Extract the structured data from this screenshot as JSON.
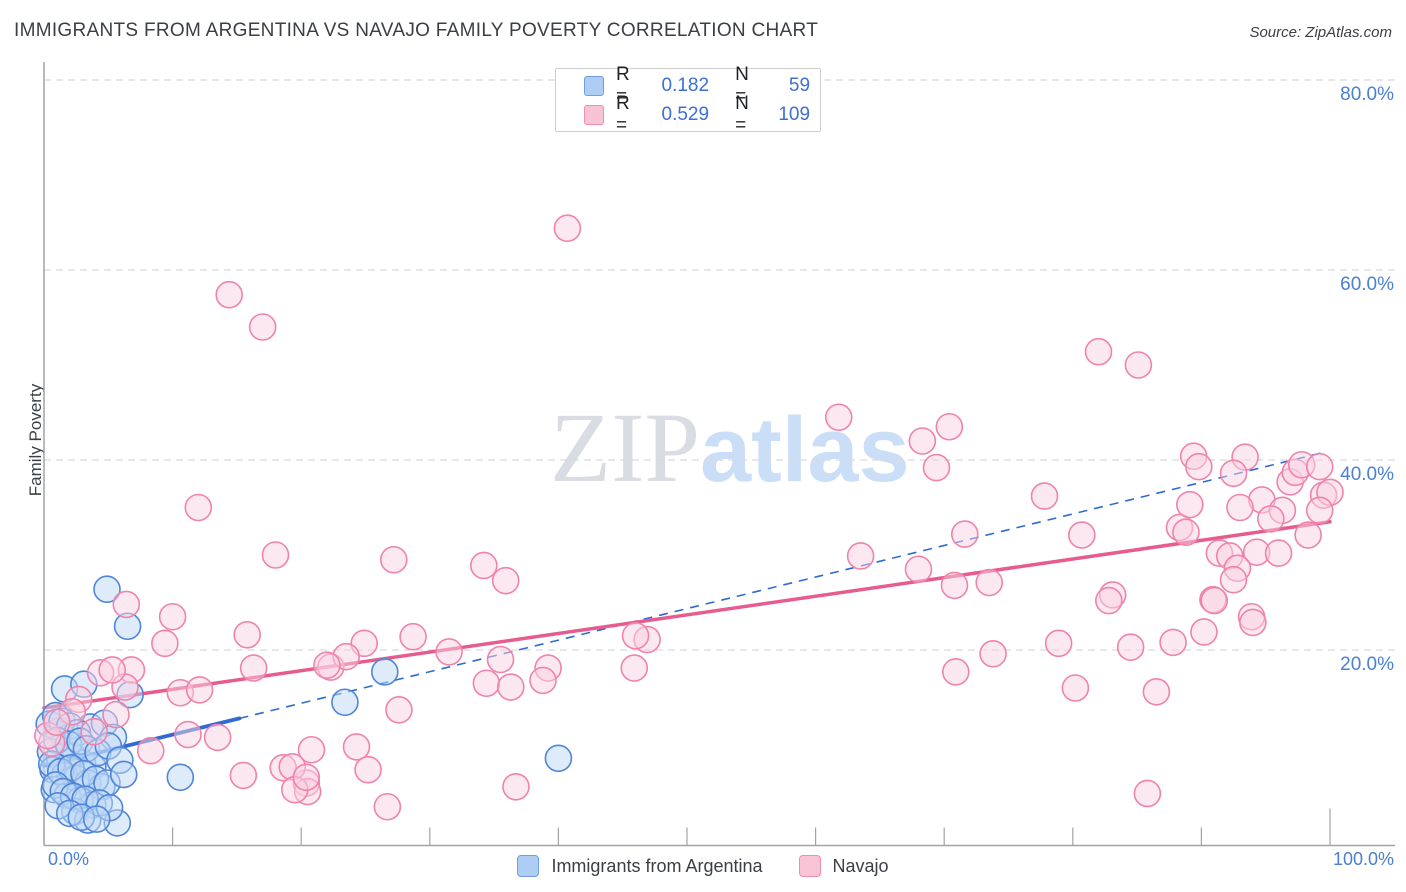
{
  "title": "IMMIGRANTS FROM ARGENTINA VS NAVAJO FAMILY POVERTY CORRELATION CHART",
  "source": "Source: ZipAtlas.com",
  "watermark": {
    "zip": "ZIP",
    "atlas": "atlas"
  },
  "colors": {
    "title_text": "#3b3f45",
    "axis_line": "#a3a3a3",
    "grid_line": "#d9d9d9",
    "tick_label_blue": "#4a7fd2",
    "value_blue": "#3e6fd4",
    "blue_point_stroke": "#4f86d8",
    "blue_point_fill": "#bdd7f5",
    "pink_point_stroke": "#f083ab",
    "pink_point_fill": "#fad2e1",
    "blue_trend": "#2f6bd0",
    "pink_trend": "#e65c8e"
  },
  "chart_data": {
    "type": "scatter",
    "title": "Immigrants from Argentina vs Navajo Family Poverty",
    "xlabel_left": "0.0%",
    "xlabel_right": "100.0%",
    "ylabel": "Family Poverty",
    "x_range": [
      0,
      105
    ],
    "y_range": [
      0,
      82
    ],
    "x_tick_step_percent": 10,
    "y_ticks": [
      20,
      40,
      60,
      80
    ],
    "y_tick_labels": [
      "20.0%",
      "40.0%",
      "60.0%",
      "80.0%"
    ],
    "grid": "dashed-horizontal",
    "legend_position": "top-center-box and bottom-center",
    "series": [
      {
        "name": "Immigrants from Argentina",
        "r_label": "R =",
        "r_value": "0.182",
        "n_label": "N =",
        "n_value": "59",
        "color": "blue",
        "points": [
          [
            4.9,
            26.4
          ],
          [
            6.5,
            22.5
          ],
          [
            1.6,
            15.9
          ],
          [
            6.7,
            15.3
          ],
          [
            3.1,
            16.4
          ],
          [
            1.2,
            11.5
          ],
          [
            3.6,
            11.9
          ],
          [
            4.7,
            12.3
          ],
          [
            5.4,
            10.8
          ],
          [
            0.5,
            9.3
          ],
          [
            1.2,
            8.7
          ],
          [
            2.2,
            8.9
          ],
          [
            3.0,
            8.1
          ],
          [
            3.8,
            7.7
          ],
          [
            0.7,
            7.4
          ],
          [
            1.6,
            6.8
          ],
          [
            2.5,
            6.5
          ],
          [
            3.4,
            6.0
          ],
          [
            10.6,
            6.6
          ],
          [
            4.5,
            5.6
          ],
          [
            0.8,
            5.3
          ],
          [
            1.8,
            4.7
          ],
          [
            2.8,
            4.2
          ],
          [
            3.8,
            3.7
          ],
          [
            2.4,
            3.0
          ],
          [
            3.4,
            2.1
          ],
          [
            5.7,
            1.8
          ],
          [
            23.4,
            14.5
          ],
          [
            26.5,
            17.7
          ],
          [
            40.0,
            8.6
          ],
          [
            0.4,
            12.2
          ],
          [
            0.9,
            13.1
          ],
          [
            1.4,
            12.5
          ],
          [
            2.0,
            12.0
          ],
          [
            2.6,
            11.3
          ],
          [
            1.0,
            10.5
          ],
          [
            1.9,
            10.1
          ],
          [
            2.8,
            10.4
          ],
          [
            3.3,
            9.6
          ],
          [
            4.2,
            9.2
          ],
          [
            0.6,
            8.0
          ],
          [
            1.3,
            7.2
          ],
          [
            2.1,
            7.6
          ],
          [
            3.1,
            7.0
          ],
          [
            4.0,
            6.4
          ],
          [
            4.9,
            6.0
          ],
          [
            0.9,
            5.8
          ],
          [
            1.5,
            5.1
          ],
          [
            2.3,
            4.6
          ],
          [
            3.2,
            4.3
          ],
          [
            4.3,
            3.9
          ],
          [
            5.1,
            3.4
          ],
          [
            1.1,
            3.6
          ],
          [
            2.0,
            2.8
          ],
          [
            2.9,
            2.4
          ],
          [
            4.1,
            2.2
          ],
          [
            5.0,
            9.9
          ],
          [
            5.9,
            8.4
          ],
          [
            6.2,
            6.9
          ]
        ],
        "trendline": {
          "start": [
            0,
            7.8
          ],
          "solid_end": [
            15.2,
            12.8
          ],
          "end": [
            99.5,
            40.8
          ],
          "style": "solid-then-dashed"
        }
      },
      {
        "name": "Navajo",
        "r_label": "R =",
        "r_value": "0.529",
        "n_label": "N =",
        "n_value": "109",
        "color": "pink",
        "points": [
          [
            40.7,
            64.4
          ],
          [
            14.4,
            57.4
          ],
          [
            17.0,
            54.0
          ],
          [
            82.0,
            51.4
          ],
          [
            85.1,
            50.0
          ],
          [
            61.8,
            44.5
          ],
          [
            70.4,
            43.5
          ],
          [
            68.3,
            42.0
          ],
          [
            69.4,
            39.2
          ],
          [
            89.4,
            40.4
          ],
          [
            89.8,
            39.3
          ],
          [
            93.4,
            40.3
          ],
          [
            92.5,
            38.6
          ],
          [
            96.9,
            37.7
          ],
          [
            97.3,
            38.7
          ],
          [
            97.8,
            39.5
          ],
          [
            99.2,
            39.3
          ],
          [
            94.7,
            35.8
          ],
          [
            96.3,
            34.7
          ],
          [
            99.5,
            36.3
          ],
          [
            100.0,
            36.6
          ],
          [
            95.4,
            33.8
          ],
          [
            88.3,
            32.9
          ],
          [
            88.8,
            32.4
          ],
          [
            98.3,
            32.1
          ],
          [
            91.4,
            30.2
          ],
          [
            92.2,
            29.9
          ],
          [
            94.3,
            30.3
          ],
          [
            96.0,
            30.2
          ],
          [
            92.8,
            28.6
          ],
          [
            90.9,
            25.3
          ],
          [
            93.9,
            23.5
          ],
          [
            89.1,
            35.3
          ],
          [
            93.0,
            35.0
          ],
          [
            99.2,
            34.7
          ],
          [
            77.8,
            36.2
          ],
          [
            71.6,
            32.2
          ],
          [
            80.7,
            32.1
          ],
          [
            63.5,
            29.9
          ],
          [
            68.0,
            28.5
          ],
          [
            83.1,
            25.8
          ],
          [
            70.9,
            17.7
          ],
          [
            73.8,
            19.6
          ],
          [
            78.9,
            20.7
          ],
          [
            82.8,
            25.2
          ],
          [
            84.5,
            20.3
          ],
          [
            87.8,
            20.8
          ],
          [
            90.2,
            21.9
          ],
          [
            91.0,
            25.2
          ],
          [
            94.0,
            22.9
          ],
          [
            80.2,
            16.0
          ],
          [
            86.5,
            15.6
          ],
          [
            85.8,
            4.9
          ],
          [
            70.8,
            26.8
          ],
          [
            73.5,
            27.1
          ],
          [
            92.5,
            27.4
          ],
          [
            27.2,
            29.5
          ],
          [
            34.2,
            28.9
          ],
          [
            35.9,
            27.3
          ],
          [
            24.9,
            20.7
          ],
          [
            28.7,
            21.4
          ],
          [
            22.3,
            18.2
          ],
          [
            23.5,
            19.3
          ],
          [
            31.5,
            19.8
          ],
          [
            35.5,
            19.0
          ],
          [
            34.4,
            16.5
          ],
          [
            36.3,
            16.1
          ],
          [
            39.2,
            18.1
          ],
          [
            38.8,
            16.8
          ],
          [
            46.9,
            21.1
          ],
          [
            46.0,
            21.5
          ],
          [
            45.9,
            18.1
          ],
          [
            27.6,
            13.7
          ],
          [
            20.8,
            9.5
          ],
          [
            24.3,
            9.8
          ],
          [
            25.2,
            7.4
          ],
          [
            20.4,
            6.0
          ],
          [
            20.5,
            5.1
          ],
          [
            26.7,
            3.5
          ],
          [
            36.7,
            5.6
          ],
          [
            12.0,
            35.0
          ],
          [
            18.0,
            30.0
          ],
          [
            6.4,
            24.8
          ],
          [
            10.0,
            23.5
          ],
          [
            15.8,
            21.6
          ],
          [
            9.4,
            20.7
          ],
          [
            4.4,
            17.6
          ],
          [
            6.8,
            17.9
          ],
          [
            16.3,
            18.1
          ],
          [
            22.0,
            18.4
          ],
          [
            2.7,
            14.8
          ],
          [
            2.2,
            13.5
          ],
          [
            3.9,
            11.4
          ],
          [
            0.6,
            10.2
          ],
          [
            15.5,
            6.8
          ],
          [
            18.6,
            7.6
          ],
          [
            11.2,
            11.1
          ],
          [
            13.5,
            10.8
          ],
          [
            10.6,
            15.5
          ],
          [
            12.1,
            15.8
          ],
          [
            19.3,
            7.7
          ],
          [
            19.5,
            5.3
          ],
          [
            20.4,
            6.6
          ],
          [
            6.3,
            16.1
          ],
          [
            5.3,
            17.9
          ],
          [
            0.3,
            11.0
          ],
          [
            1.0,
            12.4
          ],
          [
            5.6,
            13.2
          ],
          [
            8.3,
            9.4
          ]
        ],
        "trendline": {
          "start": [
            0,
            13.9
          ],
          "end": [
            100,
            33.5
          ],
          "style": "solid"
        }
      }
    ]
  }
}
